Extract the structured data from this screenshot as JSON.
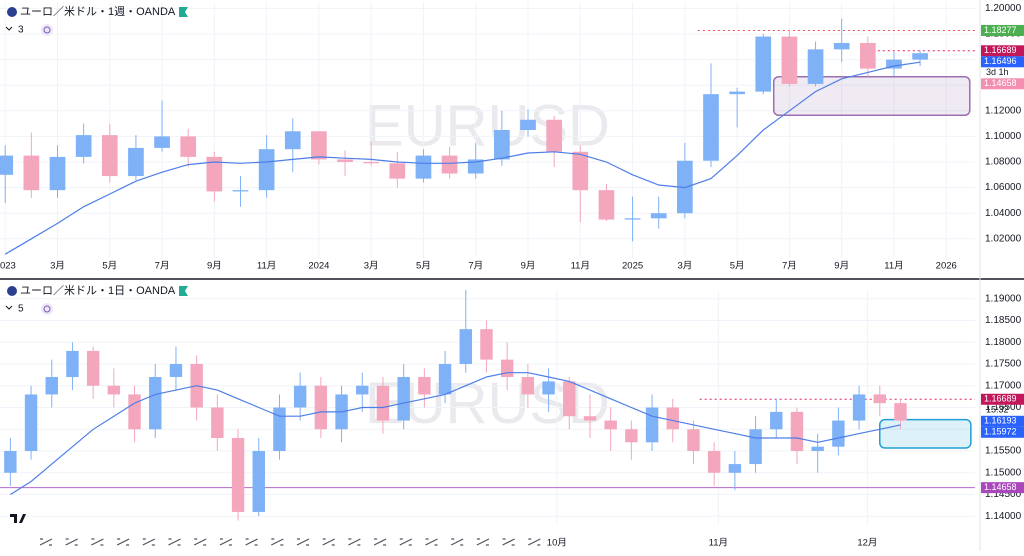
{
  "chart_data": [
    {
      "type": "candlestick",
      "title": "ユーロ／米ドル・1週・OANDA",
      "indicator_count": "3",
      "watermark": "EURUSD",
      "up_color": "#7fb1f7",
      "down_color": "#f3a6bc",
      "ma_color": "#4d7ee8",
      "xlim": [
        -0.2,
        37.1
      ],
      "ylim": [
        1.005,
        1.205
      ],
      "yticks": [
        {
          "value": 1.02,
          "label": "1.02000"
        },
        {
          "value": 1.04,
          "label": "1.04000"
        },
        {
          "value": 1.06,
          "label": "1.06000"
        },
        {
          "value": 1.08,
          "label": "1.08000"
        },
        {
          "value": 1.1,
          "label": "1.10000"
        },
        {
          "value": 1.12,
          "label": "1.12000"
        },
        {
          "value": 1.14,
          "label": "1.14000"
        },
        {
          "value": 1.16,
          "label": "1.16000"
        },
        {
          "value": 1.18,
          "label": "1.18000"
        },
        {
          "value": 1.2,
          "label": "1.20000"
        }
      ],
      "xticks": [
        {
          "value": 0,
          "label": "2023"
        },
        {
          "value": 2,
          "label": "3月"
        },
        {
          "value": 4,
          "label": "5月"
        },
        {
          "value": 6,
          "label": "7月"
        },
        {
          "value": 8,
          "label": "9月"
        },
        {
          "value": 10,
          "label": "11月"
        },
        {
          "value": 12,
          "label": "2024"
        },
        {
          "value": 14,
          "label": "3月"
        },
        {
          "value": 16,
          "label": "5月"
        },
        {
          "value": 18,
          "label": "7月"
        },
        {
          "value": 20,
          "label": "9月"
        },
        {
          "value": 22,
          "label": "11月"
        },
        {
          "value": 24,
          "label": "2025"
        },
        {
          "value": 26,
          "label": "3月"
        },
        {
          "value": 28,
          "label": "5月"
        },
        {
          "value": 30,
          "label": "7月"
        },
        {
          "value": 32,
          "label": "9月"
        },
        {
          "value": 34,
          "label": "11月"
        },
        {
          "value": 36,
          "label": "2026"
        }
      ],
      "ohlc": [
        [
          1.07,
          1.093,
          1.048,
          1.085
        ],
        [
          1.085,
          1.103,
          1.052,
          1.058
        ],
        [
          1.058,
          1.093,
          1.052,
          1.084
        ],
        [
          1.084,
          1.11,
          1.079,
          1.101
        ],
        [
          1.101,
          1.11,
          1.064,
          1.069
        ],
        [
          1.069,
          1.101,
          1.066,
          1.091
        ],
        [
          1.091,
          1.128,
          1.088,
          1.1
        ],
        [
          1.1,
          1.106,
          1.076,
          1.084
        ],
        [
          1.084,
          1.088,
          1.049,
          1.057
        ],
        [
          1.057,
          1.069,
          1.045,
          1.058
        ],
        [
          1.058,
          1.101,
          1.052,
          1.09
        ],
        [
          1.09,
          1.114,
          1.072,
          1.104
        ],
        [
          1.104,
          1.104,
          1.078,
          1.082
        ],
        [
          1.082,
          1.089,
          1.069,
          1.08
        ],
        [
          1.08,
          1.096,
          1.077,
          1.079
        ],
        [
          1.079,
          1.088,
          1.06,
          1.067
        ],
        [
          1.067,
          1.09,
          1.064,
          1.085
        ],
        [
          1.085,
          1.092,
          1.067,
          1.071
        ],
        [
          1.071,
          1.095,
          1.067,
          1.082
        ],
        [
          1.082,
          1.12,
          1.077,
          1.105
        ],
        [
          1.105,
          1.121,
          1.1,
          1.113
        ],
        [
          1.113,
          1.116,
          1.076,
          1.088
        ],
        [
          1.088,
          1.093,
          1.033,
          1.058
        ],
        [
          1.058,
          1.063,
          1.034,
          1.035
        ],
        [
          1.035,
          1.053,
          1.018,
          1.036
        ],
        [
          1.036,
          1.053,
          1.028,
          1.04
        ],
        [
          1.04,
          1.095,
          1.036,
          1.081
        ],
        [
          1.081,
          1.157,
          1.076,
          1.133
        ],
        [
          1.133,
          1.138,
          1.107,
          1.135
        ],
        [
          1.135,
          1.18,
          1.133,
          1.178
        ],
        [
          1.178,
          1.183,
          1.139,
          1.141
        ],
        [
          1.141,
          1.174,
          1.139,
          1.168
        ],
        [
          1.168,
          1.192,
          1.158,
          1.173
        ],
        [
          1.173,
          1.178,
          1.147,
          1.153
        ],
        [
          1.153,
          1.166,
          1.147,
          1.16
        ],
        [
          1.16,
          1.167,
          1.155,
          1.165
        ]
      ],
      "ma": [
        1.008,
        1.02,
        1.032,
        1.045,
        1.055,
        1.065,
        1.072,
        1.078,
        1.08,
        1.079,
        1.08,
        1.082,
        1.084,
        1.083,
        1.082,
        1.08,
        1.079,
        1.079,
        1.08,
        1.083,
        1.087,
        1.088,
        1.086,
        1.08,
        1.07,
        1.062,
        1.06,
        1.067,
        1.085,
        1.105,
        1.12,
        1.135,
        1.145,
        1.15,
        1.155,
        1.158
      ],
      "zones": [
        {
          "x": [
            29.4,
            36.9
          ],
          "y": [
            1.1466,
            1.1165
          ],
          "color": "#9c6fb0"
        }
      ],
      "price_labels": [
        {
          "value": 1.18277,
          "color": "#4caf50",
          "line_from": 26.5,
          "line_color": "#ef5350"
        },
        {
          "value": 1.16689,
          "color": "#c2185b",
          "line_from": 33,
          "line_color": "#e91e63"
        },
        {
          "value": 1.16496,
          "color": "#2962ff",
          "sub": "3d 1h"
        },
        {
          "value": 1.14658,
          "color": "#f48fb1"
        }
      ]
    },
    {
      "type": "candlestick",
      "title": "ユーロ／米ドル・1日・OANDA",
      "indicator_count": "5",
      "watermark": "EURUSD",
      "up_color": "#7fb1f7",
      "down_color": "#f3a6bc",
      "ma_color": "#4d7ee8",
      "xlim": [
        -0.5,
        46.6
      ],
      "ylim": [
        1.138,
        1.192
      ],
      "yticks": [
        {
          "value": 1.14,
          "label": "1.14000"
        },
        {
          "value": 1.145,
          "label": "1.14500"
        },
        {
          "value": 1.15,
          "label": "1.15000"
        },
        {
          "value": 1.155,
          "label": "1.15500"
        },
        {
          "value": 1.16,
          "label": "1.16000"
        },
        {
          "value": 1.165,
          "label": "1.16500"
        },
        {
          "value": 1.17,
          "label": "1.17000"
        },
        {
          "value": 1.175,
          "label": "1.17500"
        },
        {
          "value": 1.18,
          "label": "1.18000"
        },
        {
          "value": 1.185,
          "label": "1.18500"
        },
        {
          "value": 1.19,
          "label": "1.19000"
        }
      ],
      "xticks": [
        {
          "value": 26.4,
          "label": "10月"
        },
        {
          "value": 34.2,
          "label": "11月"
        },
        {
          "value": 41.4,
          "label": "12月"
        }
      ],
      "ohlc": [
        [
          1.15,
          1.158,
          1.147,
          1.155
        ],
        [
          1.155,
          1.17,
          1.153,
          1.168
        ],
        [
          1.168,
          1.176,
          1.165,
          1.172
        ],
        [
          1.172,
          1.18,
          1.169,
          1.178
        ],
        [
          1.178,
          1.179,
          1.167,
          1.17
        ],
        [
          1.17,
          1.174,
          1.165,
          1.168
        ],
        [
          1.168,
          1.17,
          1.157,
          1.16
        ],
        [
          1.16,
          1.175,
          1.158,
          1.172
        ],
        [
          1.172,
          1.179,
          1.169,
          1.175
        ],
        [
          1.175,
          1.177,
          1.162,
          1.165
        ],
        [
          1.165,
          1.168,
          1.155,
          1.158
        ],
        [
          1.158,
          1.16,
          1.139,
          1.141
        ],
        [
          1.141,
          1.158,
          1.14,
          1.155
        ],
        [
          1.155,
          1.168,
          1.153,
          1.165
        ],
        [
          1.165,
          1.173,
          1.162,
          1.17
        ],
        [
          1.17,
          1.172,
          1.158,
          1.16
        ],
        [
          1.16,
          1.17,
          1.157,
          1.168
        ],
        [
          1.168,
          1.173,
          1.164,
          1.17
        ],
        [
          1.17,
          1.172,
          1.159,
          1.162
        ],
        [
          1.162,
          1.175,
          1.16,
          1.172
        ],
        [
          1.172,
          1.174,
          1.165,
          1.168
        ],
        [
          1.168,
          1.178,
          1.166,
          1.175
        ],
        [
          1.175,
          1.192,
          1.173,
          1.183
        ],
        [
          1.183,
          1.185,
          1.173,
          1.176
        ],
        [
          1.176,
          1.18,
          1.169,
          1.172
        ],
        [
          1.172,
          1.175,
          1.165,
          1.168
        ],
        [
          1.168,
          1.174,
          1.164,
          1.171
        ],
        [
          1.171,
          1.172,
          1.16,
          1.163
        ],
        [
          1.163,
          1.168,
          1.158,
          1.162
        ],
        [
          1.162,
          1.165,
          1.155,
          1.16
        ],
        [
          1.16,
          1.162,
          1.153,
          1.157
        ],
        [
          1.157,
          1.168,
          1.155,
          1.165
        ],
        [
          1.165,
          1.167,
          1.157,
          1.16
        ],
        [
          1.16,
          1.162,
          1.152,
          1.155
        ],
        [
          1.155,
          1.157,
          1.147,
          1.15
        ],
        [
          1.15,
          1.155,
          1.146,
          1.152
        ],
        [
          1.152,
          1.163,
          1.15,
          1.16
        ],
        [
          1.16,
          1.167,
          1.158,
          1.164
        ],
        [
          1.164,
          1.165,
          1.152,
          1.155
        ],
        [
          1.155,
          1.159,
          1.15,
          1.156
        ],
        [
          1.156,
          1.165,
          1.154,
          1.162
        ],
        [
          1.162,
          1.17,
          1.16,
          1.168
        ],
        [
          1.168,
          1.17,
          1.163,
          1.166
        ],
        [
          1.166,
          1.167,
          1.16,
          1.162
        ]
      ],
      "ma": [
        1.145,
        1.148,
        1.152,
        1.156,
        1.16,
        1.163,
        1.166,
        1.168,
        1.169,
        1.17,
        1.169,
        1.167,
        1.165,
        1.163,
        1.163,
        1.164,
        1.164,
        1.165,
        1.165,
        1.166,
        1.167,
        1.168,
        1.17,
        1.172,
        1.173,
        1.173,
        1.172,
        1.171,
        1.169,
        1.167,
        1.165,
        1.163,
        1.162,
        1.161,
        1.16,
        1.159,
        1.158,
        1.158,
        1.158,
        1.157,
        1.158,
        1.159,
        1.16,
        1.161
      ],
      "zones": [
        {
          "x": [
            42.0,
            46.4
          ],
          "y": [
            1.1622,
            1.1557
          ],
          "color": "#1e9fd8"
        }
      ],
      "price_labels": [
        {
          "value": 1.16689,
          "color": "#c2185b",
          "line_from": 33.3,
          "line_color": "#e91e63",
          "sub": "15:32"
        },
        {
          "value": 1.16193,
          "color": "#2962ff"
        },
        {
          "value": 1.15972,
          "color": "#2962ff"
        },
        {
          "value": 1.14658,
          "color": "#ab47bc",
          "line_from": -0.5,
          "line_color": "#ba68c8",
          "solid": true
        }
      ]
    }
  ]
}
